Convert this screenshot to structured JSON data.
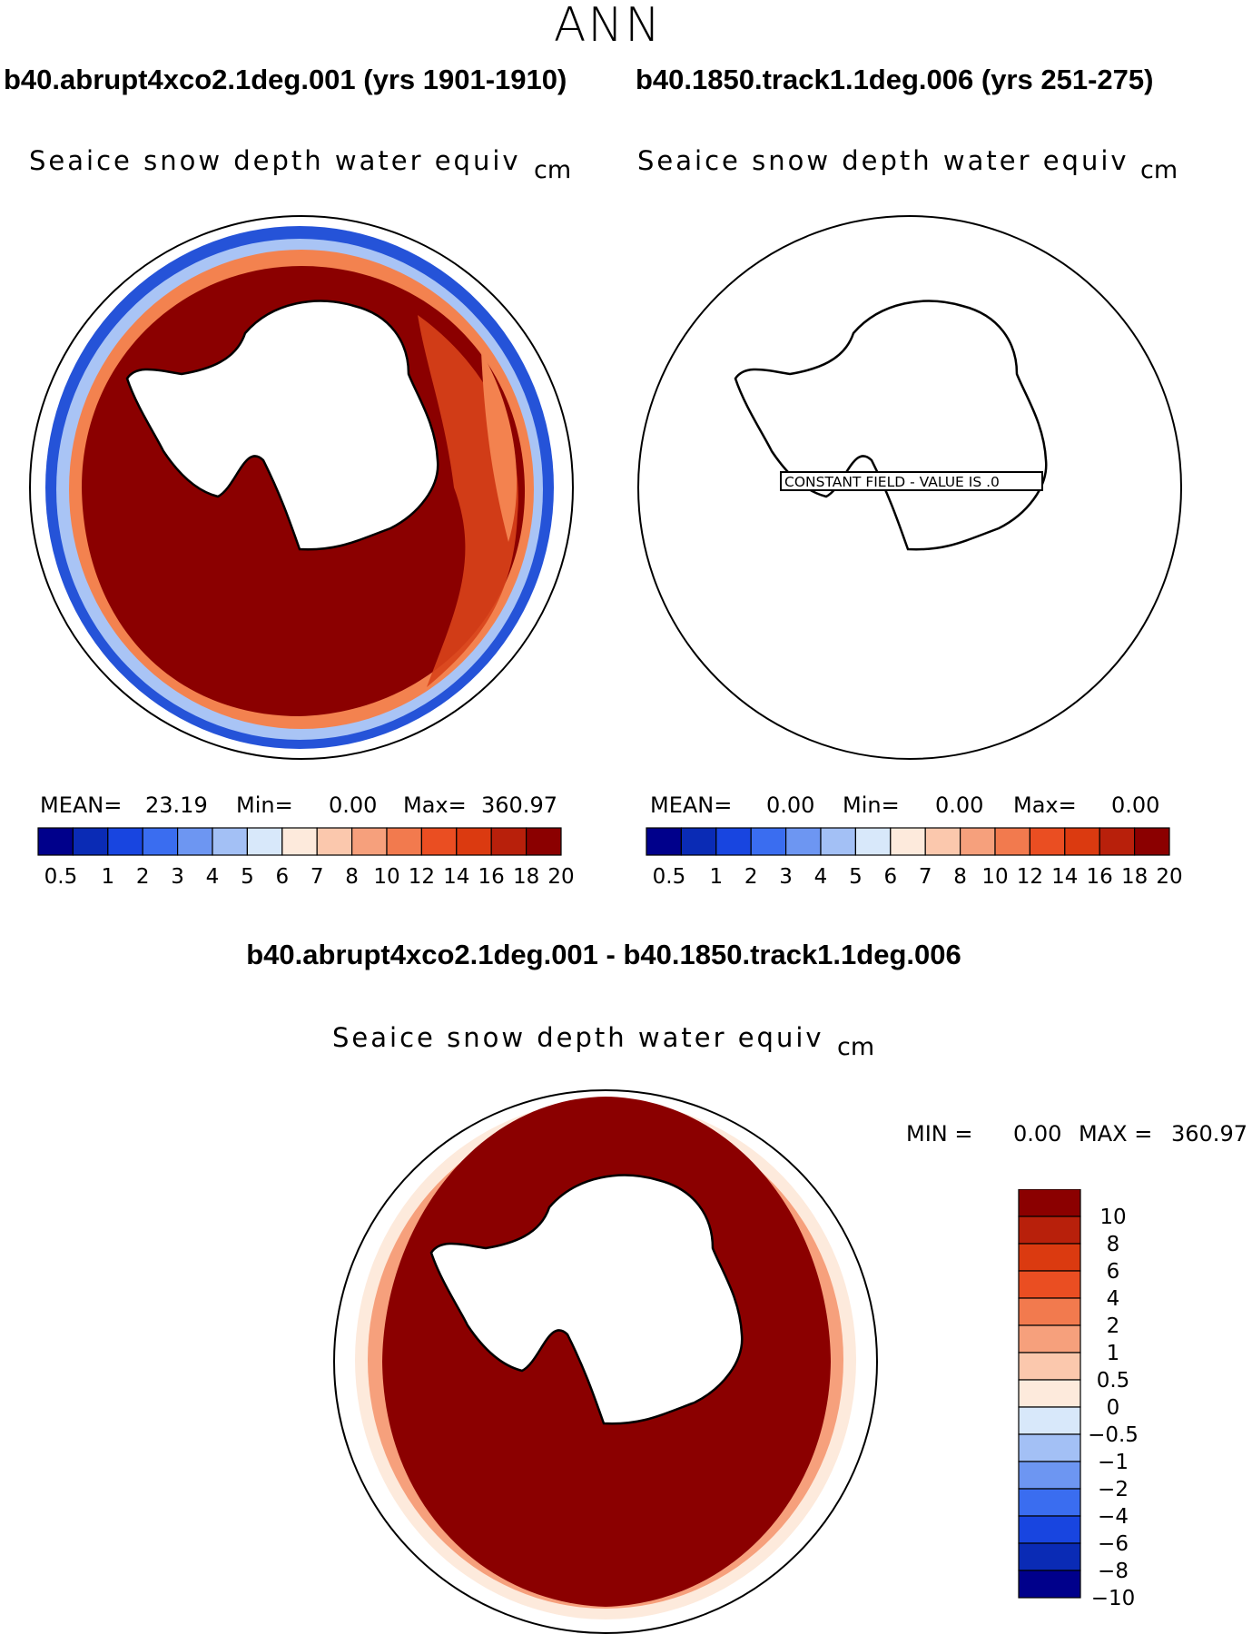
{
  "figure": {
    "season": "ANN",
    "case1": {
      "title": "b40.abrupt4xco2.1deg.001 (yrs 1901-1910)"
    },
    "case2": {
      "title": "b40.1850.track1.1deg.006 (yrs 251-275)"
    },
    "diff_title": "b40.abrupt4xco2.1deg.001 - b40.1850.track1.1deg.006",
    "variable": "Seaice snow depth water equiv",
    "unit": "cm",
    "constant_field_label": "CONSTANT FIELD - VALUE IS .0"
  },
  "stats": {
    "panel1": {
      "mean_label": "MEAN=",
      "mean": "23.19",
      "min_label": "Min=",
      "min": "0.00",
      "max_label": "Max=",
      "max": "360.97"
    },
    "panel2": {
      "mean_label": "MEAN=",
      "mean": "0.00",
      "min_label": "Min=",
      "min": "0.00",
      "max_label": "Max=",
      "max": "0.00"
    },
    "diff": {
      "min_label": "MIN =",
      "min": "0.00",
      "max_label": "MAX =",
      "max": "360.97"
    }
  },
  "colorbar_abs": {
    "labels": [
      "0.5",
      "1",
      "2",
      "3",
      "4",
      "5",
      "6",
      "7",
      "8",
      "10",
      "12",
      "14",
      "16",
      "18",
      "20"
    ],
    "colors": [
      "#00008b",
      "#0a2bb5",
      "#1845e0",
      "#3a6df0",
      "#6d96f2",
      "#a3c0f5",
      "#d8e8fa",
      "#fdeadc",
      "#fbc8ad",
      "#f6a07c",
      "#f27a4e",
      "#ea4e22",
      "#db3a10",
      "#b8200b",
      "#8b0000"
    ]
  },
  "colorbar_diff": {
    "labels": [
      "10",
      "8",
      "6",
      "4",
      "2",
      "1",
      "0.5",
      "0",
      "-0.5",
      "-1",
      "-2",
      "-4",
      "-6",
      "-8",
      "-10"
    ],
    "colors": [
      "#8b0000",
      "#b8200b",
      "#db3a10",
      "#ea4e22",
      "#f27a4e",
      "#f6a07c",
      "#fbc8ad",
      "#fdeadc",
      "#d8e8fa",
      "#a3c0f5",
      "#6d96f2",
      "#3a6df0",
      "#1845e0",
      "#0a2bb5",
      "#00008b"
    ]
  },
  "chart_data": [
    {
      "type": "heatmap",
      "title": "b40.abrupt4xco2.1deg.001 (yrs 1901-1910)",
      "variable": "Seaice snow depth water equiv",
      "unit": "cm",
      "projection": "south-polar-stereographic",
      "mean": 23.19,
      "min": 0.0,
      "max": 360.97,
      "levels": [
        0.5,
        1,
        2,
        3,
        4,
        5,
        6,
        7,
        8,
        10,
        12,
        14,
        16,
        18,
        20
      ]
    },
    {
      "type": "heatmap",
      "title": "b40.1850.track1.1deg.006 (yrs 251-275)",
      "variable": "Seaice snow depth water equiv",
      "unit": "cm",
      "projection": "south-polar-stereographic",
      "mean": 0.0,
      "min": 0.0,
      "max": 0.0,
      "constant_value": 0.0,
      "levels": [
        0.5,
        1,
        2,
        3,
        4,
        5,
        6,
        7,
        8,
        10,
        12,
        14,
        16,
        18,
        20
      ]
    },
    {
      "type": "heatmap",
      "title": "b40.abrupt4xco2.1deg.001 - b40.1850.track1.1deg.006",
      "variable": "Seaice snow depth water equiv",
      "unit": "cm",
      "projection": "south-polar-stereographic",
      "min": 0.0,
      "max": 360.97,
      "levels": [
        -10,
        -8,
        -6,
        -4,
        -2,
        -1,
        -0.5,
        0,
        0.5,
        1,
        2,
        4,
        6,
        8,
        10
      ]
    }
  ]
}
